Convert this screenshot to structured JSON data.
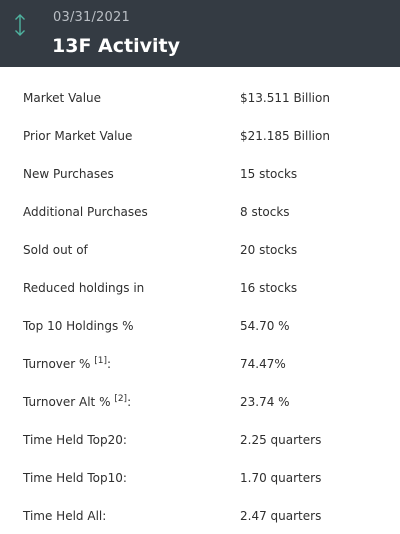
{
  "header": {
    "date": "03/31/2021",
    "title": "13F Activity",
    "icon": "up-down-arrow-icon",
    "background": "#343b43",
    "icon_color": "#4fb3a0"
  },
  "rows": [
    {
      "label": "Market Value",
      "value": "$13.511 Billion"
    },
    {
      "label": "Prior Market Value",
      "value": "$21.185 Billion"
    },
    {
      "label": "New Purchases",
      "value": "15 stocks"
    },
    {
      "label": "Additional Purchases",
      "value": "8 stocks"
    },
    {
      "label": "Sold out of",
      "value": "20 stocks"
    },
    {
      "label": "Reduced holdings in",
      "value": "16 stocks"
    },
    {
      "label": "Top 10 Holdings %",
      "value": "54.70 %"
    },
    {
      "label": "Turnover %",
      "footnote": "[1]",
      "suffix": ":",
      "value": "74.47%"
    },
    {
      "label": "Turnover Alt %",
      "footnote": "[2]",
      "suffix": ":",
      "value": "23.74 %"
    },
    {
      "label": "Time Held Top20:",
      "value": "2.25 quarters"
    },
    {
      "label": "Time Held Top10:",
      "value": "1.70 quarters"
    },
    {
      "label": "Time Held All:",
      "value": "2.47 quarters"
    }
  ]
}
